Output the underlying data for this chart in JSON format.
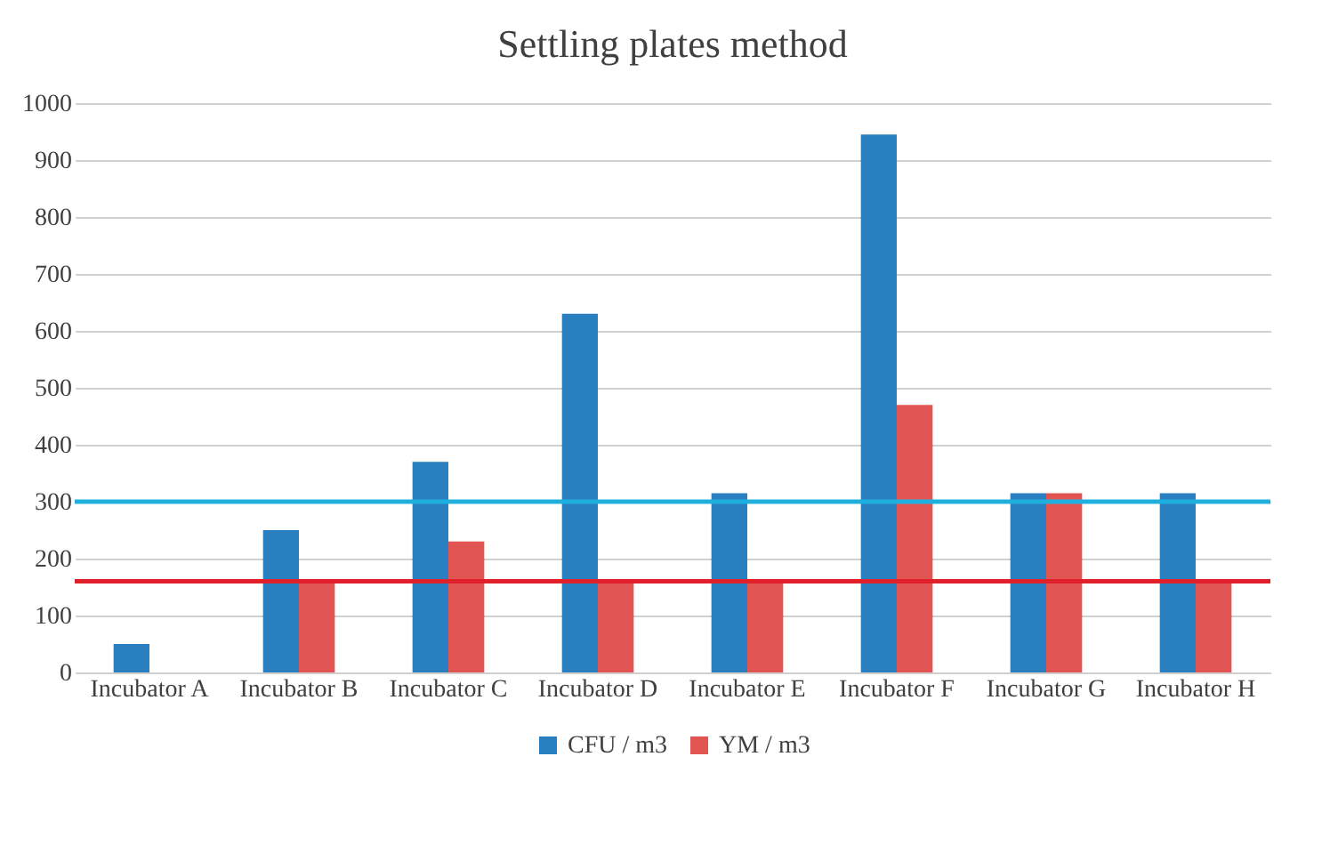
{
  "chart_data": {
    "type": "bar",
    "title": "Settling plates method",
    "categories": [
      "Incubator A",
      "Incubator B",
      "Incubator C",
      "Incubator D",
      "Incubator E",
      "Incubator F",
      "Incubator G",
      "Incubator H"
    ],
    "series": [
      {
        "name": "CFU / m3",
        "color": "#2a7fc1",
        "values": [
          50,
          250,
          370,
          630,
          315,
          945,
          315,
          315
        ]
      },
      {
        "name": "YM / m3",
        "color": "#e05452",
        "values": [
          null,
          160,
          230,
          160,
          160,
          470,
          315,
          160
        ]
      }
    ],
    "ylim": [
      0,
      1000
    ],
    "yticks": [
      0,
      100,
      200,
      300,
      400,
      500,
      600,
      700,
      800,
      900,
      1000
    ],
    "grid": "y",
    "legend": "bottom",
    "ref_lines": [
      {
        "axis": "y",
        "value": 300,
        "color": "#1fb0e0"
      },
      {
        "axis": "y",
        "value": 160,
        "color": "#e0202a"
      }
    ]
  }
}
